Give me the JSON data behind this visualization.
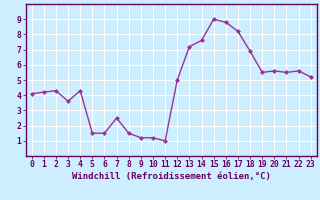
{
  "x": [
    0,
    1,
    2,
    3,
    4,
    5,
    6,
    7,
    8,
    9,
    10,
    11,
    12,
    13,
    14,
    15,
    16,
    17,
    18,
    19,
    20,
    21,
    22,
    23
  ],
  "y": [
    4.1,
    4.2,
    4.3,
    3.6,
    4.3,
    1.5,
    1.5,
    2.5,
    1.5,
    1.2,
    1.2,
    1.0,
    5.0,
    7.2,
    7.6,
    9.0,
    8.8,
    8.2,
    6.9,
    5.5,
    5.6,
    5.5,
    5.6,
    5.2
  ],
  "line_color": "#993399",
  "marker": "D",
  "marker_size": 2.0,
  "line_width": 1.0,
  "bg_color": "#cceeff",
  "grid_color": "#ffffff",
  "xlabel": "Windchill (Refroidissement éolien,°C)",
  "xlabel_fontsize": 6.5,
  "xlim": [
    -0.5,
    23.5
  ],
  "ylim": [
    0,
    10
  ],
  "yticks": [
    1,
    2,
    3,
    4,
    5,
    6,
    7,
    8,
    9
  ],
  "xticks": [
    0,
    1,
    2,
    3,
    4,
    5,
    6,
    7,
    8,
    9,
    10,
    11,
    12,
    13,
    14,
    15,
    16,
    17,
    18,
    19,
    20,
    21,
    22,
    23
  ],
  "tick_fontsize": 5.8,
  "tick_color": "#660066",
  "axis_color": "#660066",
  "spine_color": "#660066"
}
